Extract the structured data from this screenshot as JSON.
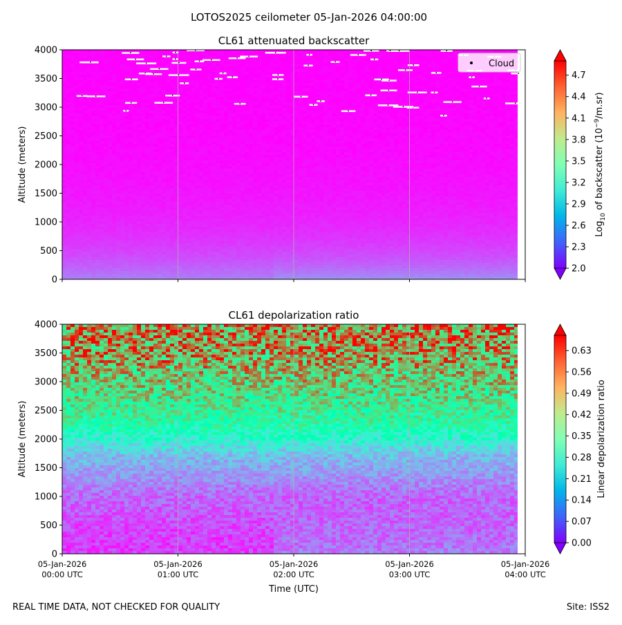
{
  "figure": {
    "title": "LOTOS2025 ceilometer 05-Jan-2026 04:00:00",
    "footer_left": "REAL TIME DATA, NOT CHECKED FOR QUALITY",
    "footer_right": "Site: ISS2"
  },
  "chart_data": [
    {
      "type": "heatmap",
      "title": "CL61 attenuated backscatter",
      "ylabel": "Altitude (meters)",
      "xlabel": "",
      "ylim": [
        0,
        4000
      ],
      "yticks": [
        0,
        500,
        1000,
        1500,
        2000,
        2500,
        3000,
        3500,
        4000
      ],
      "x_range": [
        "05-Jan-2026 00:00 UTC",
        "05-Jan-2026 04:00 UTC"
      ],
      "grid": "vertical lines at hourly ticks",
      "colorbar": {
        "label_prefix": "Log",
        "label_sub": "10",
        "label_mid": " of backscatter (10",
        "label_sup": "−9",
        "label_suffix": "/m.sr)",
        "ticks": [
          "2.0",
          "2.3",
          "2.6",
          "2.9",
          "3.2",
          "3.5",
          "3.8",
          "4.1",
          "4.4",
          "4.7"
        ],
        "min": 2.0,
        "max": 4.9,
        "colormap": "rainbow"
      },
      "legend": {
        "entries": [
          "Cloud"
        ],
        "placement": "top-right",
        "marker_color": "#000000"
      },
      "description_of_field": {
        "upper_atmosphere_value": 2.0,
        "boundary_layer_value": 2.35,
        "cloud_bases_m": "scattered cloud detections between about 2850 and 4000 m"
      }
    },
    {
      "type": "heatmap",
      "title": "CL61 depolarization ratio",
      "ylabel": "Altitude (meters)",
      "xlabel": "Time (UTC)",
      "ylim": [
        0,
        4000
      ],
      "yticks": [
        0,
        500,
        1000,
        1500,
        2000,
        2500,
        3000,
        3500,
        4000
      ],
      "xticks": [
        {
          "date": "05-Jan-2026",
          "time": "00:00 UTC"
        },
        {
          "date": "05-Jan-2026",
          "time": "01:00 UTC"
        },
        {
          "date": "05-Jan-2026",
          "time": "02:00 UTC"
        },
        {
          "date": "05-Jan-2026",
          "time": "03:00 UTC"
        },
        {
          "date": "05-Jan-2026",
          "time": "04:00 UTC"
        }
      ],
      "grid": "vertical lines at hourly ticks",
      "colorbar": {
        "label": "Linear depolarization ratio",
        "ticks": [
          "0.00",
          "0.07",
          "0.14",
          "0.21",
          "0.28",
          "0.35",
          "0.42",
          "0.49",
          "0.56",
          "0.63"
        ],
        "min": 0.0,
        "max": 0.68,
        "colormap": "rainbow"
      },
      "profile_approx": [
        {
          "altitude": 250,
          "value": 0.05
        },
        {
          "altitude": 1000,
          "value": 0.09
        },
        {
          "altitude": 1700,
          "value": 0.18
        },
        {
          "altitude": 2300,
          "value": 0.38
        },
        {
          "altitude": 3000,
          "value": 0.48
        },
        {
          "altitude": 3700,
          "value": 0.56
        }
      ]
    }
  ]
}
